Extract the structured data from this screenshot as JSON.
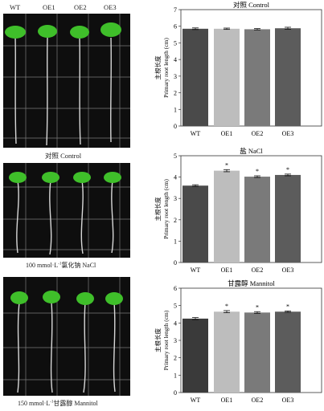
{
  "photos": [
    {
      "genotypes": [
        "WT",
        "OE1",
        "OE2",
        "OE3"
      ],
      "caption": "对照 Control"
    },
    {
      "caption_prefix": "100 mmol·L",
      "caption_sup": "-1",
      "caption_suffix": "氯化钠 NaCl"
    },
    {
      "caption_prefix": "150 mmol·L",
      "caption_sup": "-1",
      "caption_suffix": "甘露醇 Mannitol"
    }
  ],
  "colors": {
    "WT": "#4a4a4a",
    "OE1": "#bdbdbd",
    "OE2": "#7a7a7a",
    "OE3": "#5c5c5c",
    "WT_mannitol": "#3a3a3a"
  },
  "chart_data": [
    {
      "type": "bar",
      "title": "对照 Control",
      "ylabel_cn": "主根长度",
      "ylabel": "Primary root length (cm)",
      "categories": [
        "WT",
        "OE1",
        "OE2",
        "OE3"
      ],
      "values": [
        5.85,
        5.85,
        5.82,
        5.88
      ],
      "errors": [
        0.05,
        0.04,
        0.04,
        0.06
      ],
      "significance": [
        "",
        "",
        "",
        ""
      ],
      "ylim": [
        0,
        7
      ],
      "yticks": [
        0,
        1,
        2,
        3,
        4,
        5,
        6,
        7
      ]
    },
    {
      "type": "bar",
      "title": "盐 NaCl",
      "ylabel_cn": "主根长度",
      "ylabel": "Primary root length (cm)",
      "categories": [
        "WT",
        "OE1",
        "OE2",
        "OE3"
      ],
      "values": [
        3.6,
        4.3,
        4.02,
        4.1
      ],
      "errors": [
        0.04,
        0.05,
        0.04,
        0.04
      ],
      "significance": [
        "",
        "*",
        "*",
        "*"
      ],
      "ylim": [
        0,
        5
      ],
      "yticks": [
        0,
        1,
        2,
        3,
        4,
        5
      ]
    },
    {
      "type": "bar",
      "title": "甘露醇 Mannitol",
      "ylabel_cn": "主根长度",
      "ylabel": "Primary root length (cm)",
      "categories": [
        "WT",
        "OE1",
        "OE2",
        "OE3"
      ],
      "values": [
        4.25,
        4.65,
        4.6,
        4.65
      ],
      "errors": [
        0.06,
        0.06,
        0.05,
        0.04
      ],
      "significance": [
        "",
        "*",
        "*",
        "*"
      ],
      "ylim": [
        0,
        6
      ],
      "yticks": [
        0,
        1,
        2,
        3,
        4,
        5,
        6
      ]
    }
  ]
}
